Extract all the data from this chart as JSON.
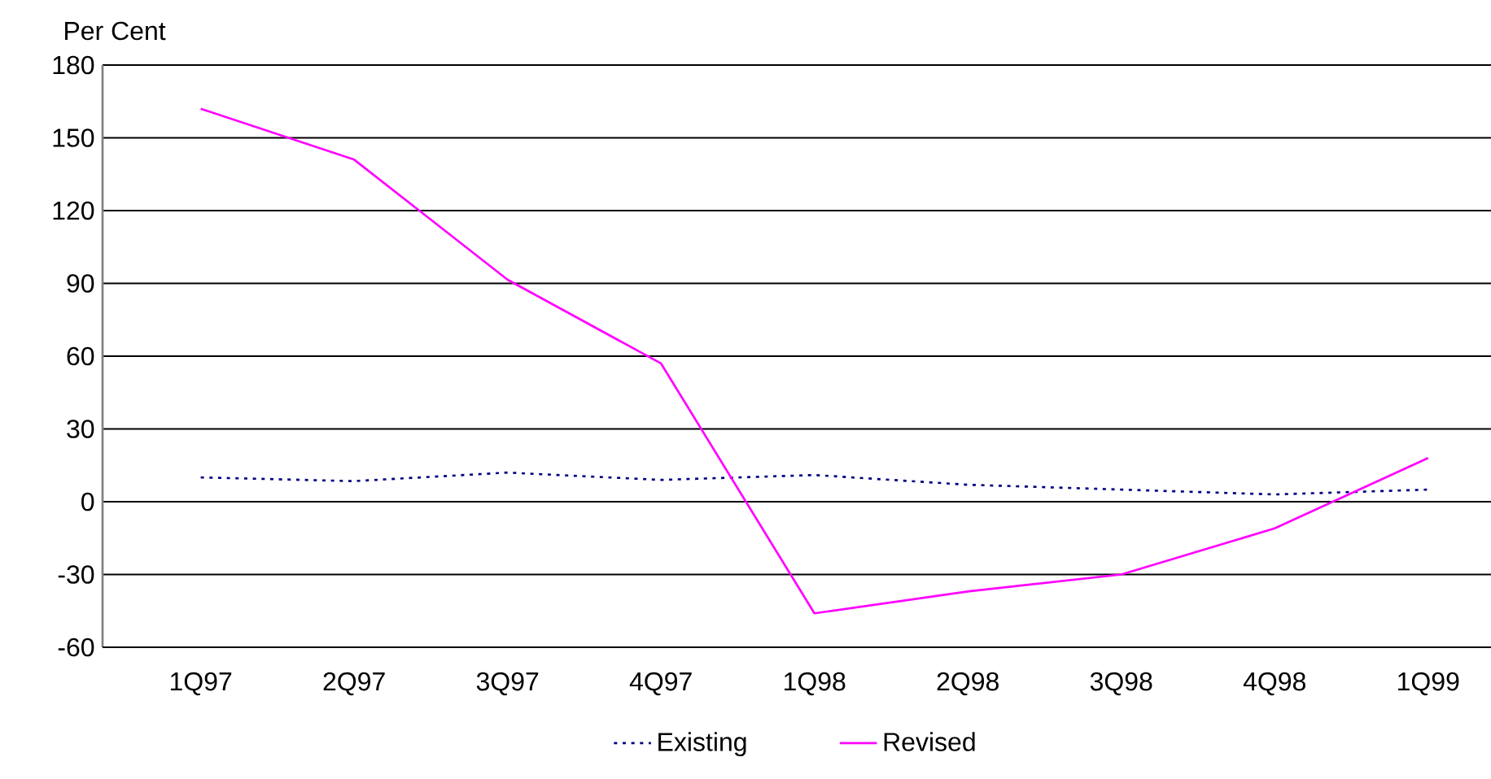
{
  "chart_data": {
    "type": "line",
    "ylabel": "Per Cent",
    "categories": [
      "1Q97",
      "2Q97",
      "3Q97",
      "4Q97",
      "1Q98",
      "2Q98",
      "3Q98",
      "4Q98",
      "1Q99"
    ],
    "series": [
      {
        "name": "Existing",
        "color": "#000080",
        "line_style": "dotted",
        "values": [
          10,
          8.5,
          12,
          9,
          11,
          7,
          5,
          3,
          5
        ]
      },
      {
        "name": "Revised",
        "color": "#ff00ff",
        "line_style": "solid",
        "values": [
          162,
          141,
          91.5,
          57,
          -46,
          -37,
          -30,
          -11,
          18
        ]
      }
    ],
    "ylim": [
      -60,
      180
    ],
    "yticks": [
      -60,
      -30,
      0,
      30,
      60,
      90,
      120,
      150,
      180
    ],
    "grid": "y",
    "legend": "bottom",
    "marker": "none"
  }
}
